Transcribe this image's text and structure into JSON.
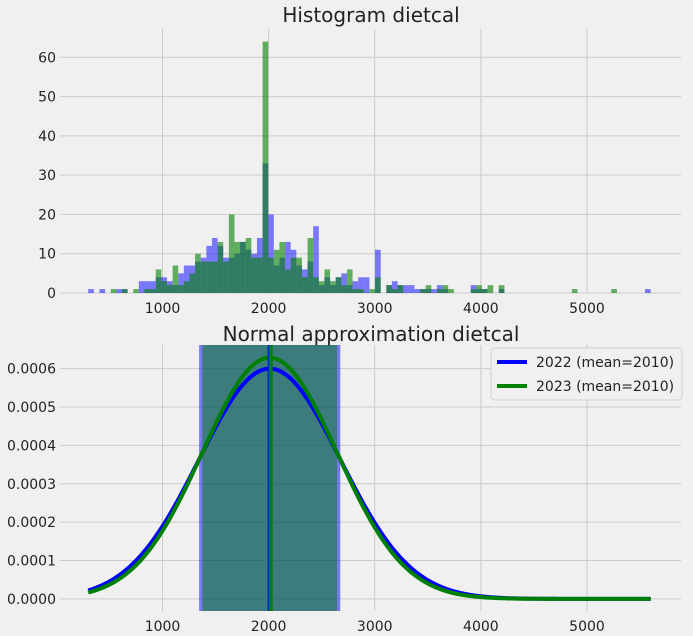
{
  "chart_data": [
    {
      "type": "bar",
      "subtype": "histogram",
      "title": "Histogram dietcal",
      "xlabel": "",
      "ylabel": "",
      "bin_start": 300,
      "bin_width": 53,
      "xlim": [
        34,
        5886
      ],
      "ylim": [
        0,
        67.2
      ],
      "xticks": [
        1000,
        2000,
        3000,
        4000,
        5000
      ],
      "yticks": [
        0,
        10,
        20,
        30,
        40,
        50,
        60
      ],
      "grid": true,
      "series": [
        {
          "name": "2022",
          "color": "#0000ff",
          "alpha": 0.5,
          "values": [
            1,
            0,
            1,
            0,
            0,
            1,
            1,
            0,
            0,
            3,
            3,
            3,
            4,
            4,
            3,
            2,
            5,
            7,
            7,
            8,
            9,
            12,
            14,
            12,
            9,
            9,
            10,
            13,
            11,
            10,
            14,
            33,
            20,
            7,
            9,
            13,
            11,
            7,
            6,
            8,
            17,
            2,
            4,
            2,
            4,
            5,
            2,
            3,
            4,
            4,
            0,
            11,
            0,
            2,
            3,
            2,
            2,
            2,
            1,
            1,
            1,
            1,
            2,
            1,
            0,
            0,
            0,
            0,
            2,
            1,
            1,
            0,
            0,
            1,
            0,
            0,
            0,
            0,
            0,
            0,
            0,
            0,
            0,
            0,
            0,
            0,
            0,
            0,
            0,
            0,
            0,
            0,
            0,
            0,
            0,
            0,
            0,
            0,
            0,
            1
          ]
        },
        {
          "name": "2023",
          "color": "#008000",
          "alpha": 0.6,
          "values": [
            0,
            0,
            0,
            0,
            1,
            0,
            1,
            0,
            1,
            0,
            1,
            1,
            6,
            3,
            2,
            7,
            2,
            3,
            5,
            10,
            8,
            8,
            8,
            13,
            8,
            20,
            13,
            13,
            14,
            9,
            9,
            64,
            9,
            11,
            13,
            6,
            9,
            9,
            4,
            14,
            4,
            3,
            6,
            3,
            4,
            2,
            6,
            1,
            1,
            0,
            1,
            4,
            0,
            2,
            1,
            2,
            0,
            0,
            0,
            1,
            2,
            0,
            1,
            2,
            1,
            0,
            0,
            0,
            1,
            2,
            1,
            2,
            0,
            2,
            0,
            0,
            0,
            0,
            0,
            0,
            0,
            0,
            0,
            0,
            0,
            0,
            1,
            0,
            0,
            0,
            0,
            0,
            0,
            1,
            0,
            0,
            0,
            0,
            0,
            0
          ]
        }
      ]
    },
    {
      "type": "line",
      "title": "Normal approximation dietcal",
      "xlabel": "",
      "ylabel": "",
      "xlim": [
        34,
        5886
      ],
      "ylim": [
        -3.15e-05,
        0.0006615
      ],
      "x_range": [
        300,
        5600
      ],
      "xticks": [
        1000,
        2000,
        3000,
        4000,
        5000
      ],
      "yticks": [
        0,
        0.0001,
        0.0002,
        0.0003,
        0.0004,
        0.0005,
        0.0006
      ],
      "ytick_labels": [
        "0.0000",
        "0.0001",
        "0.0002",
        "0.0003",
        "0.0004",
        "0.0005",
        "0.0006"
      ],
      "grid": true,
      "legend_position": "top-right",
      "series": [
        {
          "name": "2022 (mean=2010)",
          "color": "#0000ff",
          "mean": 2010,
          "std": 665,
          "shade": [
            1345,
            2675
          ]
        },
        {
          "name": "2023 (mean=2010)",
          "color": "#008000",
          "mean": 2010,
          "std": 635,
          "shade": [
            1375,
            2645
          ]
        }
      ]
    }
  ]
}
